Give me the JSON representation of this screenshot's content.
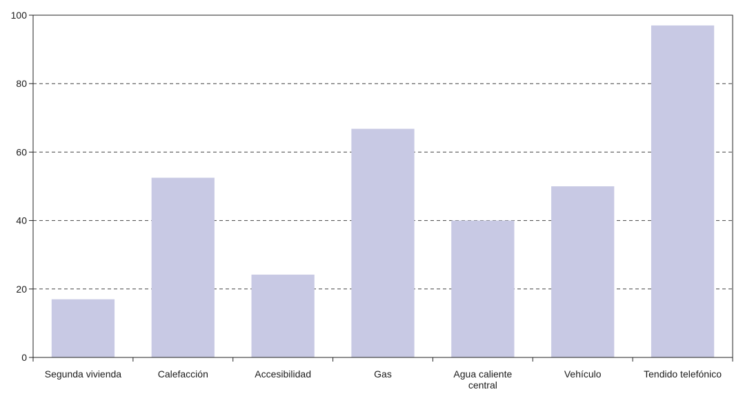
{
  "chart_data": {
    "type": "bar",
    "title": "",
    "xlabel": "",
    "ylabel": "",
    "categories": [
      [
        "Segunda vivienda"
      ],
      [
        "Calefacción"
      ],
      [
        "Accesibilidad"
      ],
      [
        "Gas"
      ],
      [
        "Agua caliente",
        "central"
      ],
      [
        "Vehículo"
      ],
      [
        "Tendido telefónico"
      ]
    ],
    "values": [
      17,
      52.5,
      24.2,
      66.8,
      40,
      50,
      97
    ],
    "ylim": [
      0,
      100
    ],
    "yticks": [
      "0",
      "20",
      "40",
      "60",
      "80",
      "100"
    ],
    "grid": "horizontal dashed",
    "colors": {
      "bar": "#c8c9e4",
      "axis": "#222222",
      "grid": "#444444",
      "text": "#1a1a1a"
    }
  }
}
